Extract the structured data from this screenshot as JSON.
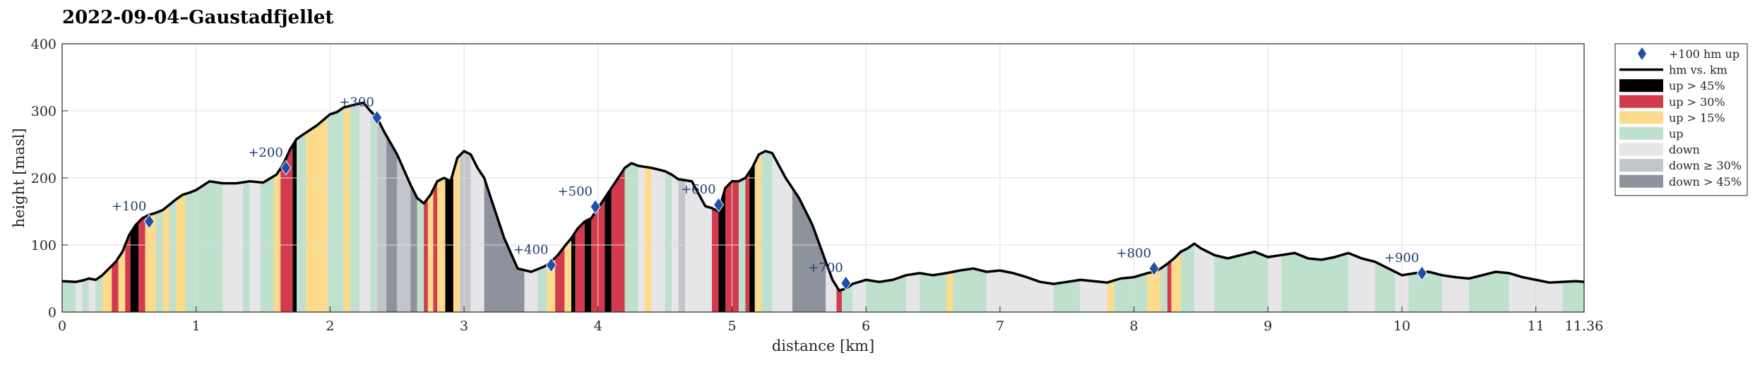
{
  "chart_data": {
    "type": "area",
    "title": "2022-09-04–Gaustadfjellet",
    "xlabel": "distance [km]",
    "ylabel": "height [masl]",
    "xlim": [
      0,
      11.36
    ],
    "ylim": [
      0,
      400
    ],
    "x_ticks": [
      {
        "value": 0,
        "label": "0"
      },
      {
        "value": 1,
        "label": "1"
      },
      {
        "value": 2,
        "label": "2"
      },
      {
        "value": 3,
        "label": "3"
      },
      {
        "value": 4,
        "label": "4"
      },
      {
        "value": 5,
        "label": "5"
      },
      {
        "value": 6,
        "label": "6"
      },
      {
        "value": 7,
        "label": "7"
      },
      {
        "value": 8,
        "label": "8"
      },
      {
        "value": 9,
        "label": "9"
      },
      {
        "value": 10,
        "label": "10"
      },
      {
        "value": 11,
        "label": "11"
      },
      {
        "value": 11.36,
        "label": "11.36"
      }
    ],
    "y_ticks": [
      {
        "value": 0,
        "label": "0"
      },
      {
        "value": 100,
        "label": "100"
      },
      {
        "value": 200,
        "label": "200"
      },
      {
        "value": 300,
        "label": "300"
      },
      {
        "value": 400,
        "label": "400"
      }
    ],
    "grid": true,
    "legend_position": "outside-right",
    "colors": {
      "line": "#000000",
      "marker": "#1f4fa8",
      "up45": "#000000",
      "up30": "#d43a4e",
      "up15": "#fcdb8c",
      "up": "#bfe0cc",
      "down": "#e6e6e8",
      "down30": "#c3c5cc",
      "down45": "#8e929c"
    },
    "legend": [
      {
        "key": "marker",
        "label": "+100 hm up"
      },
      {
        "key": "line",
        "label": "hm vs. km"
      },
      {
        "key": "up45",
        "label": "up > 45%"
      },
      {
        "key": "up30",
        "label": "up > 30%"
      },
      {
        "key": "up15",
        "label": "up > 15%"
      },
      {
        "key": "up",
        "label": "up"
      },
      {
        "key": "down",
        "label": "down"
      },
      {
        "key": "down30",
        "label": "down ≥ 30%"
      },
      {
        "key": "down45",
        "label": "down > 45%"
      }
    ],
    "series": [
      {
        "name": "hm vs. km",
        "x": [
          0,
          0.1,
          0.15,
          0.2,
          0.25,
          0.3,
          0.35,
          0.4,
          0.45,
          0.5,
          0.55,
          0.6,
          0.65,
          0.7,
          0.75,
          0.8,
          0.85,
          0.9,
          0.95,
          1.0,
          1.1,
          1.2,
          1.3,
          1.4,
          1.5,
          1.6,
          1.65,
          1.7,
          1.75,
          1.8,
          1.9,
          2.0,
          2.05,
          2.1,
          2.2,
          2.25,
          2.3,
          2.35,
          2.4,
          2.5,
          2.6,
          2.65,
          2.7,
          2.75,
          2.8,
          2.85,
          2.9,
          2.95,
          3.0,
          3.05,
          3.1,
          3.15,
          3.2,
          3.3,
          3.4,
          3.5,
          3.6,
          3.65,
          3.7,
          3.75,
          3.8,
          3.85,
          3.9,
          3.95,
          4.0,
          4.05,
          4.1,
          4.15,
          4.2,
          4.25,
          4.3,
          4.4,
          4.5,
          4.55,
          4.6,
          4.7,
          4.8,
          4.85,
          4.9,
          4.95,
          5.0,
          5.05,
          5.1,
          5.15,
          5.2,
          5.25,
          5.3,
          5.4,
          5.5,
          5.6,
          5.7,
          5.75,
          5.8,
          5.85,
          5.9,
          5.95,
          6.0,
          6.1,
          6.2,
          6.3,
          6.4,
          6.5,
          6.6,
          6.7,
          6.8,
          6.9,
          7.0,
          7.1,
          7.2,
          7.3,
          7.4,
          7.5,
          7.6,
          7.7,
          7.8,
          7.9,
          8.0,
          8.1,
          8.15,
          8.2,
          8.25,
          8.3,
          8.35,
          8.4,
          8.45,
          8.5,
          8.6,
          8.7,
          8.8,
          8.9,
          9.0,
          9.1,
          9.2,
          9.3,
          9.4,
          9.5,
          9.6,
          9.7,
          9.8,
          9.9,
          10.0,
          10.1,
          10.2,
          10.3,
          10.4,
          10.5,
          10.6,
          10.7,
          10.8,
          10.9,
          11.0,
          11.1,
          11.2,
          11.3,
          11.36
        ],
        "y": [
          46,
          45,
          47,
          50,
          48,
          55,
          65,
          75,
          90,
          115,
          130,
          140,
          145,
          148,
          152,
          160,
          168,
          175,
          178,
          182,
          195,
          192,
          192,
          195,
          193,
          205,
          220,
          242,
          258,
          265,
          278,
          295,
          298,
          305,
          310,
          312,
          300,
          290,
          270,
          235,
          190,
          170,
          162,
          175,
          195,
          200,
          195,
          230,
          240,
          235,
          215,
          200,
          170,
          110,
          65,
          60,
          68,
          75,
          85,
          98,
          110,
          125,
          135,
          140,
          155,
          170,
          185,
          200,
          215,
          222,
          218,
          215,
          210,
          205,
          198,
          195,
          158,
          155,
          150,
          185,
          195,
          195,
          200,
          215,
          235,
          240,
          237,
          200,
          170,
          130,
          75,
          48,
          32,
          35,
          42,
          45,
          48,
          45,
          48,
          55,
          58,
          55,
          58,
          62,
          65,
          60,
          62,
          58,
          52,
          45,
          42,
          45,
          48,
          46,
          44,
          50,
          52,
          58,
          60,
          65,
          72,
          80,
          90,
          95,
          102,
          95,
          85,
          80,
          85,
          90,
          82,
          85,
          88,
          80,
          78,
          82,
          88,
          80,
          75,
          65,
          55,
          58,
          60,
          55,
          52,
          50,
          55,
          60,
          58,
          52,
          48,
          44,
          45,
          46,
          45
        ]
      },
      {
        "name": "+100 hm up",
        "points": [
          {
            "x": 0.65,
            "y": 135,
            "label": "+100"
          },
          {
            "x": 1.67,
            "y": 215,
            "label": "+200"
          },
          {
            "x": 2.35,
            "y": 290,
            "label": "+300"
          },
          {
            "x": 3.65,
            "y": 70,
            "label": "+400"
          },
          {
            "x": 3.98,
            "y": 157,
            "label": "+500"
          },
          {
            "x": 4.9,
            "y": 160,
            "label": "+600"
          },
          {
            "x": 5.85,
            "y": 43,
            "label": "+700"
          },
          {
            "x": 8.15,
            "y": 65,
            "label": "+800"
          },
          {
            "x": 10.15,
            "y": 58,
            "label": "+900"
          }
        ]
      }
    ],
    "bands": [
      {
        "x0": 0,
        "x1": 0.1,
        "c": "up"
      },
      {
        "x0": 0.1,
        "x1": 0.15,
        "c": "down"
      },
      {
        "x0": 0.15,
        "x1": 0.2,
        "c": "up"
      },
      {
        "x0": 0.2,
        "x1": 0.25,
        "c": "down"
      },
      {
        "x0": 0.25,
        "x1": 0.3,
        "c": "up"
      },
      {
        "x0": 0.3,
        "x1": 0.37,
        "c": "up15"
      },
      {
        "x0": 0.37,
        "x1": 0.42,
        "c": "up30"
      },
      {
        "x0": 0.42,
        "x1": 0.47,
        "c": "up15"
      },
      {
        "x0": 0.47,
        "x1": 0.51,
        "c": "up30"
      },
      {
        "x0": 0.51,
        "x1": 0.57,
        "c": "up45"
      },
      {
        "x0": 0.57,
        "x1": 0.62,
        "c": "up30"
      },
      {
        "x0": 0.62,
        "x1": 0.7,
        "c": "up15"
      },
      {
        "x0": 0.7,
        "x1": 0.75,
        "c": "up"
      },
      {
        "x0": 0.75,
        "x1": 0.8,
        "c": "up15"
      },
      {
        "x0": 0.8,
        "x1": 0.85,
        "c": "up"
      },
      {
        "x0": 0.85,
        "x1": 0.92,
        "c": "up15"
      },
      {
        "x0": 0.92,
        "x1": 1.2,
        "c": "up"
      },
      {
        "x0": 1.2,
        "x1": 1.35,
        "c": "down"
      },
      {
        "x0": 1.35,
        "x1": 1.4,
        "c": "up"
      },
      {
        "x0": 1.4,
        "x1": 1.48,
        "c": "down"
      },
      {
        "x0": 1.48,
        "x1": 1.58,
        "c": "up"
      },
      {
        "x0": 1.58,
        "x1": 1.63,
        "c": "up15"
      },
      {
        "x0": 1.63,
        "x1": 1.72,
        "c": "up30"
      },
      {
        "x0": 1.72,
        "x1": 1.75,
        "c": "up45"
      },
      {
        "x0": 1.75,
        "x1": 1.82,
        "c": "up"
      },
      {
        "x0": 1.82,
        "x1": 1.98,
        "c": "up15"
      },
      {
        "x0": 1.98,
        "x1": 2.1,
        "c": "up"
      },
      {
        "x0": 2.1,
        "x1": 2.15,
        "c": "up15"
      },
      {
        "x0": 2.15,
        "x1": 2.22,
        "c": "up"
      },
      {
        "x0": 2.22,
        "x1": 2.3,
        "c": "down"
      },
      {
        "x0": 2.3,
        "x1": 2.35,
        "c": "up"
      },
      {
        "x0": 2.35,
        "x1": 2.42,
        "c": "down30"
      },
      {
        "x0": 2.42,
        "x1": 2.5,
        "c": "down45"
      },
      {
        "x0": 2.5,
        "x1": 2.6,
        "c": "down30"
      },
      {
        "x0": 2.6,
        "x1": 2.65,
        "c": "down45"
      },
      {
        "x0": 2.65,
        "x1": 2.7,
        "c": "up"
      },
      {
        "x0": 2.7,
        "x1": 2.73,
        "c": "up30"
      },
      {
        "x0": 2.73,
        "x1": 2.77,
        "c": "up15"
      },
      {
        "x0": 2.77,
        "x1": 2.8,
        "c": "up30"
      },
      {
        "x0": 2.8,
        "x1": 2.86,
        "c": "up15"
      },
      {
        "x0": 2.86,
        "x1": 2.92,
        "c": "up45"
      },
      {
        "x0": 2.92,
        "x1": 2.97,
        "c": "up15"
      },
      {
        "x0": 2.97,
        "x1": 3.05,
        "c": "down30"
      },
      {
        "x0": 3.05,
        "x1": 3.15,
        "c": "down"
      },
      {
        "x0": 3.15,
        "x1": 3.45,
        "c": "down45"
      },
      {
        "x0": 3.45,
        "x1": 3.55,
        "c": "down"
      },
      {
        "x0": 3.55,
        "x1": 3.62,
        "c": "up"
      },
      {
        "x0": 3.62,
        "x1": 3.68,
        "c": "up15"
      },
      {
        "x0": 3.68,
        "x1": 3.75,
        "c": "up30"
      },
      {
        "x0": 3.75,
        "x1": 3.8,
        "c": "up15"
      },
      {
        "x0": 3.8,
        "x1": 3.83,
        "c": "up45"
      },
      {
        "x0": 3.83,
        "x1": 3.9,
        "c": "up30"
      },
      {
        "x0": 3.9,
        "x1": 3.95,
        "c": "up45"
      },
      {
        "x0": 3.95,
        "x1": 4.05,
        "c": "up30"
      },
      {
        "x0": 4.05,
        "x1": 4.1,
        "c": "up45"
      },
      {
        "x0": 4.1,
        "x1": 4.2,
        "c": "up30"
      },
      {
        "x0": 4.2,
        "x1": 4.3,
        "c": "up"
      },
      {
        "x0": 4.3,
        "x1": 4.35,
        "c": "down"
      },
      {
        "x0": 4.35,
        "x1": 4.4,
        "c": "up15"
      },
      {
        "x0": 4.4,
        "x1": 4.5,
        "c": "down"
      },
      {
        "x0": 4.5,
        "x1": 4.55,
        "c": "up"
      },
      {
        "x0": 4.55,
        "x1": 4.6,
        "c": "down"
      },
      {
        "x0": 4.6,
        "x1": 4.65,
        "c": "down30"
      },
      {
        "x0": 4.65,
        "x1": 4.85,
        "c": "down"
      },
      {
        "x0": 4.85,
        "x1": 4.9,
        "c": "up30"
      },
      {
        "x0": 4.9,
        "x1": 4.95,
        "c": "up45"
      },
      {
        "x0": 4.95,
        "x1": 5.05,
        "c": "up30"
      },
      {
        "x0": 5.05,
        "x1": 5.1,
        "c": "up"
      },
      {
        "x0": 5.1,
        "x1": 5.13,
        "c": "up30"
      },
      {
        "x0": 5.13,
        "x1": 5.17,
        "c": "up45"
      },
      {
        "x0": 5.17,
        "x1": 5.22,
        "c": "up15"
      },
      {
        "x0": 5.22,
        "x1": 5.3,
        "c": "up"
      },
      {
        "x0": 5.3,
        "x1": 5.45,
        "c": "down"
      },
      {
        "x0": 5.45,
        "x1": 5.7,
        "c": "down45"
      },
      {
        "x0": 5.7,
        "x1": 5.78,
        "c": "down"
      },
      {
        "x0": 5.78,
        "x1": 5.82,
        "c": "up30"
      },
      {
        "x0": 5.82,
        "x1": 5.9,
        "c": "up"
      },
      {
        "x0": 5.9,
        "x1": 6.0,
        "c": "down"
      },
      {
        "x0": 6.0,
        "x1": 6.3,
        "c": "up"
      },
      {
        "x0": 6.3,
        "x1": 6.4,
        "c": "down"
      },
      {
        "x0": 6.4,
        "x1": 6.6,
        "c": "up"
      },
      {
        "x0": 6.6,
        "x1": 6.65,
        "c": "up15"
      },
      {
        "x0": 6.65,
        "x1": 6.9,
        "c": "up"
      },
      {
        "x0": 6.9,
        "x1": 7.4,
        "c": "down"
      },
      {
        "x0": 7.4,
        "x1": 7.6,
        "c": "up"
      },
      {
        "x0": 7.6,
        "x1": 7.8,
        "c": "down"
      },
      {
        "x0": 7.8,
        "x1": 7.85,
        "c": "up15"
      },
      {
        "x0": 7.85,
        "x1": 8.1,
        "c": "up"
      },
      {
        "x0": 8.1,
        "x1": 8.2,
        "c": "up15"
      },
      {
        "x0": 8.2,
        "x1": 8.25,
        "c": "up"
      },
      {
        "x0": 8.25,
        "x1": 8.28,
        "c": "up30"
      },
      {
        "x0": 8.28,
        "x1": 8.35,
        "c": "up15"
      },
      {
        "x0": 8.35,
        "x1": 8.45,
        "c": "up"
      },
      {
        "x0": 8.45,
        "x1": 8.6,
        "c": "down"
      },
      {
        "x0": 8.6,
        "x1": 9.0,
        "c": "up"
      },
      {
        "x0": 9.0,
        "x1": 9.1,
        "c": "down"
      },
      {
        "x0": 9.1,
        "x1": 9.6,
        "c": "up"
      },
      {
        "x0": 9.6,
        "x1": 9.8,
        "c": "down"
      },
      {
        "x0": 9.8,
        "x1": 9.95,
        "c": "up"
      },
      {
        "x0": 9.95,
        "x1": 10.05,
        "c": "down"
      },
      {
        "x0": 10.05,
        "x1": 10.3,
        "c": "up"
      },
      {
        "x0": 10.3,
        "x1": 10.5,
        "c": "down"
      },
      {
        "x0": 10.5,
        "x1": 10.8,
        "c": "up"
      },
      {
        "x0": 10.8,
        "x1": 11.2,
        "c": "down"
      },
      {
        "x0": 11.2,
        "x1": 11.36,
        "c": "up"
      }
    ]
  }
}
